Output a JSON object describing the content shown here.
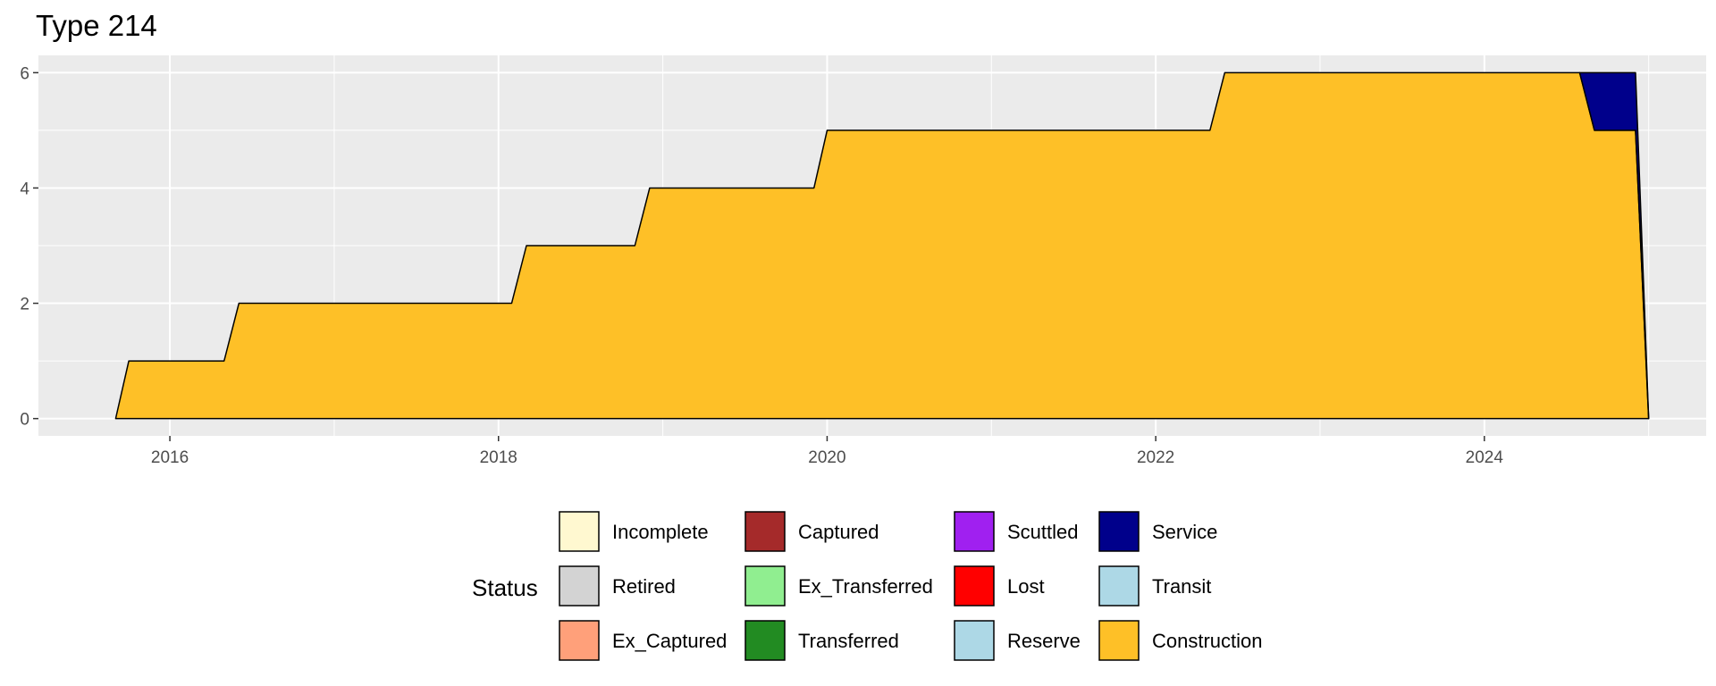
{
  "chart_data": {
    "type": "area",
    "title": "Type 214",
    "xlabel": "",
    "ylabel": "",
    "xlim": [
      2015.2,
      2025.35
    ],
    "ylim": [
      -0.3,
      6.3
    ],
    "x_ticks": [
      2016,
      2018,
      2020,
      2022,
      2024
    ],
    "y_ticks": [
      0,
      2,
      4,
      6
    ],
    "grid": true,
    "stacking": "stacked",
    "series": [
      {
        "name": "Construction",
        "color": "#fec027",
        "points": [
          [
            2015.67,
            0
          ],
          [
            2015.75,
            1
          ],
          [
            2016.33,
            1
          ],
          [
            2016.42,
            2
          ],
          [
            2018.08,
            2
          ],
          [
            2018.17,
            3
          ],
          [
            2018.83,
            3
          ],
          [
            2018.92,
            4
          ],
          [
            2019.92,
            4
          ],
          [
            2020.0,
            5
          ],
          [
            2022.33,
            5
          ],
          [
            2022.42,
            6
          ],
          [
            2024.58,
            6
          ],
          [
            2024.67,
            5
          ],
          [
            2024.92,
            5
          ],
          [
            2025.0,
            0
          ]
        ]
      },
      {
        "name": "Service",
        "color": "#00008b",
        "points": [
          [
            2015.67,
            0
          ],
          [
            2024.58,
            0
          ],
          [
            2024.67,
            1
          ],
          [
            2024.92,
            1
          ],
          [
            2025.0,
            0
          ]
        ]
      }
    ],
    "legend": {
      "title": "Status",
      "position": "bottom",
      "entries": [
        {
          "label": "Incomplete",
          "color": "#fff8d0"
        },
        {
          "label": "Retired",
          "color": "#d3d3d3"
        },
        {
          "label": "Ex_Captured",
          "color": "#ffa07a"
        },
        {
          "label": "Captured",
          "color": "#a52a2a"
        },
        {
          "label": "Ex_Transferred",
          "color": "#90ee90"
        },
        {
          "label": "Transferred",
          "color": "#228b22"
        },
        {
          "label": "Scuttled",
          "color": "#a020f0"
        },
        {
          "label": "Lost",
          "color": "#ff0000"
        },
        {
          "label": "Reserve",
          "color": "#add8e6"
        },
        {
          "label": "Service",
          "color": "#00008b"
        },
        {
          "label": "Transit",
          "color": "#add8e6"
        },
        {
          "label": "Construction",
          "color": "#fec027"
        }
      ]
    }
  }
}
